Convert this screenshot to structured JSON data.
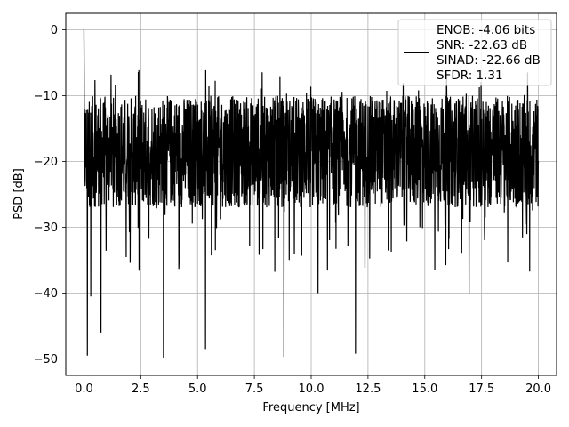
{
  "chart_data": {
    "type": "line",
    "xlabel": "Frequency [MHz]",
    "ylabel": "PSD [dB]",
    "xlim": [
      -0.8,
      20.8
    ],
    "ylim": [
      -52.5,
      2.5
    ],
    "xticks": [
      0.0,
      2.5,
      5.0,
      7.5,
      10.0,
      12.5,
      15.0,
      17.5,
      20.0
    ],
    "xtick_labels": [
      "0.0",
      "2.5",
      "5.0",
      "7.5",
      "10.0",
      "12.5",
      "15.0",
      "17.5",
      "20.0"
    ],
    "yticks": [
      0,
      -10,
      -20,
      -30,
      -40,
      -50
    ],
    "ytick_labels": [
      "0",
      "−10",
      "−20",
      "−30",
      "−40",
      "−50"
    ],
    "grid": true,
    "legend_position": "top-right",
    "line_color": "#000000",
    "legend": {
      "lines": [
        "ENOB: -4.06 bits",
        "SNR: -22.63 dB",
        "SINAD: -22.66 dB",
        "SFDR: 1.31"
      ]
    },
    "series": [
      {
        "x_range": [
          0.0,
          20.0
        ],
        "band_top_db": -10,
        "band_bottom_db": -27,
        "peak_at_dc_db": 0,
        "notable_minima": [
          {
            "x": 0.15,
            "y": -49.5
          },
          {
            "x": 0.3,
            "y": -40.5
          },
          {
            "x": 0.75,
            "y": -46.0
          },
          {
            "x": 3.5,
            "y": -49.8
          },
          {
            "x": 5.35,
            "y": -48.5
          },
          {
            "x": 8.8,
            "y": -49.7
          },
          {
            "x": 11.95,
            "y": -49.2
          },
          {
            "x": 10.3,
            "y": -40.0
          },
          {
            "x": 16.95,
            "y": -40.0
          }
        ]
      }
    ]
  }
}
